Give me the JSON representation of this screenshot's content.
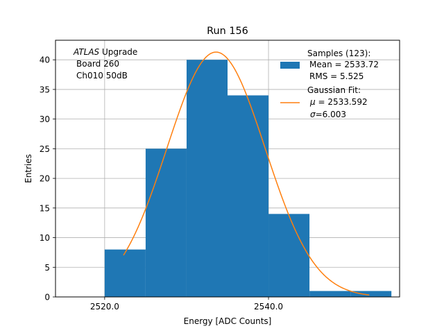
{
  "chart_data": {
    "type": "bar",
    "title": "Run 156",
    "xlabel": "Energy [ADC Counts]",
    "ylabel": "Entries",
    "xlim": [
      2514.0,
      2556.0
    ],
    "ylim": [
      0,
      43.3
    ],
    "xticks": [
      {
        "value": 2520,
        "label": "2520.0"
      },
      {
        "value": 2540,
        "label": "2540.0"
      }
    ],
    "yticks": [
      {
        "value": 0,
        "label": "0"
      },
      {
        "value": 5,
        "label": "5"
      },
      {
        "value": 10,
        "label": "10"
      },
      {
        "value": 15,
        "label": "15"
      },
      {
        "value": 20,
        "label": "20"
      },
      {
        "value": 25,
        "label": "25"
      },
      {
        "value": 30,
        "label": "30"
      },
      {
        "value": 35,
        "label": "35"
      },
      {
        "value": 40,
        "label": "40"
      }
    ],
    "grid": true,
    "histogram": {
      "bin_edges": [
        2520,
        2525,
        2530,
        2535,
        2540,
        2545,
        2550,
        2555
      ],
      "counts": [
        8,
        25,
        40,
        34,
        14,
        1,
        1
      ],
      "color": "#1f77b4"
    },
    "fit": {
      "mu": 2533.592,
      "sigma": 6.003,
      "amplitude": 41.3,
      "x_range": [
        2522.3,
        2552.3
      ],
      "color": "#ff7f0e"
    },
    "annotation": {
      "line1_italic": "ATLAS",
      "line1_rest": " Upgrade",
      "line2": "Board 260",
      "line3": "Ch010 50dB"
    },
    "legend": {
      "position": "top-right",
      "samples_title": "Samples (123):",
      "samples_mean": "Mean = 2533.72",
      "samples_rms": "RMS = 5.525",
      "fit_title": "Gaussian Fit:",
      "fit_mu_symbol": "μ",
      "fit_mu_value": " = 2533.592",
      "fit_sigma_symbol": "σ",
      "fit_sigma_value": "=6.003"
    }
  }
}
